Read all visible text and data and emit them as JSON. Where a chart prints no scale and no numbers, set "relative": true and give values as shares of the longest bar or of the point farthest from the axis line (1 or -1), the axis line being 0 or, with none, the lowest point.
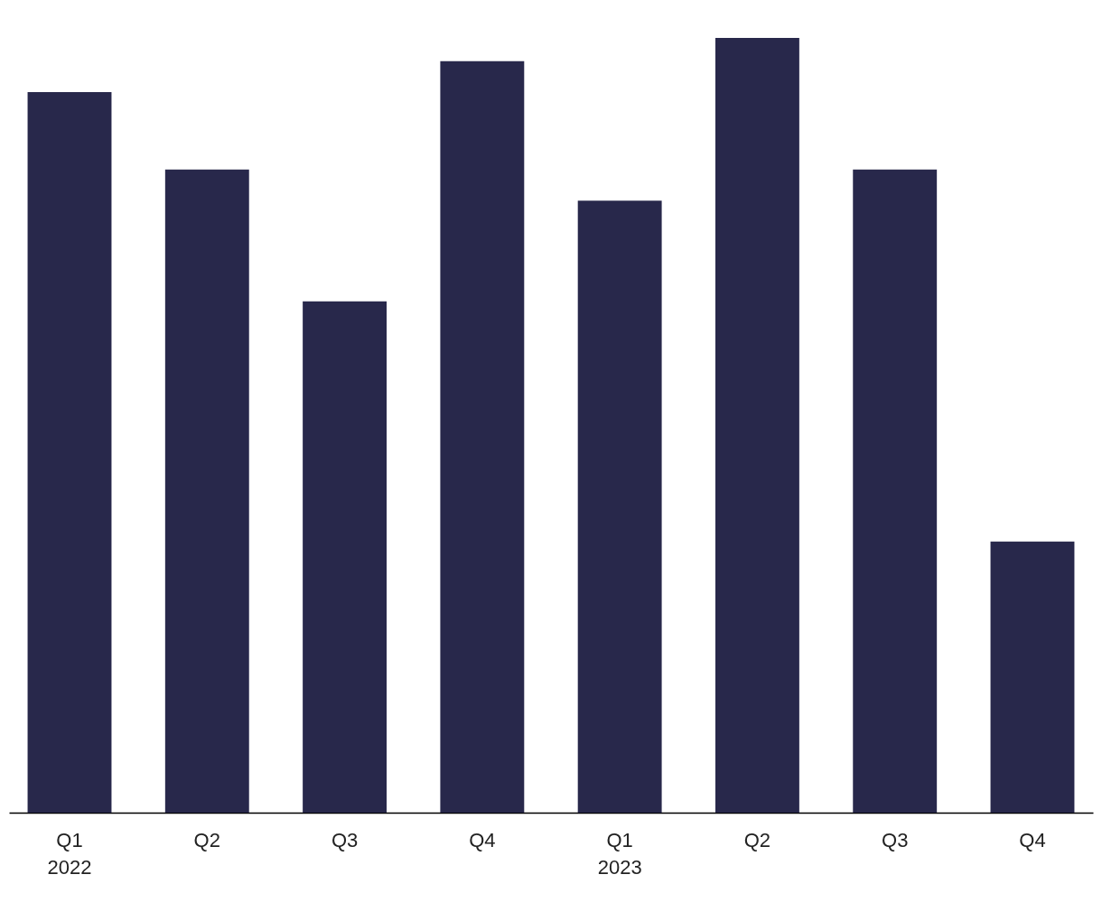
{
  "chart_data": {
    "type": "bar",
    "relative": true,
    "categories": [
      "Q1\n2022",
      "Q2",
      "Q3",
      "Q4",
      "Q1\n2023",
      "Q2",
      "Q3",
      "Q4"
    ],
    "values": [
      0.93,
      0.83,
      0.66,
      0.97,
      0.79,
      1,
      0.83,
      0.35
    ],
    "color": "#28284b"
  }
}
